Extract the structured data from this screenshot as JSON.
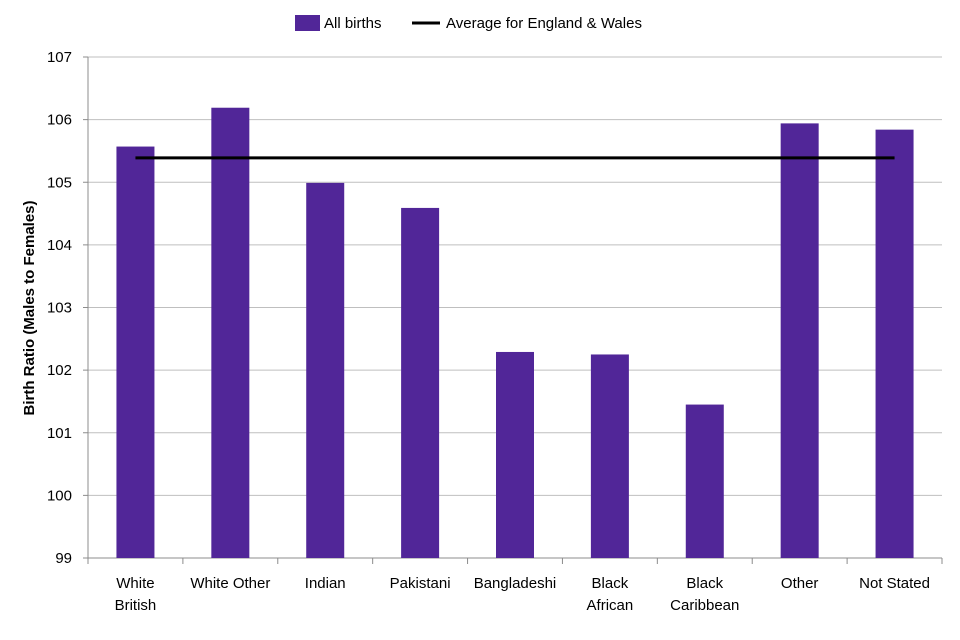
{
  "chart_data": {
    "type": "bar",
    "title": "",
    "xlabel": "",
    "ylabel": "Birth Ratio (Males to Females)",
    "ylim": [
      99,
      107
    ],
    "yticks": [
      "99",
      "100",
      "101",
      "102",
      "103",
      "104",
      "105",
      "106",
      "107"
    ],
    "grid": true,
    "legend_position": "top",
    "categories": [
      [
        "White",
        "British"
      ],
      [
        "White Other"
      ],
      [
        "Indian"
      ],
      [
        "Pakistani"
      ],
      [
        "Bangladeshi"
      ],
      [
        "Black",
        "African"
      ],
      [
        "Black",
        "Caribbean"
      ],
      [
        "Other"
      ],
      [
        "Not Stated"
      ]
    ],
    "series": [
      {
        "name": "All births",
        "type": "bar",
        "color": "#512698",
        "values": [
          105.57,
          106.19,
          104.99,
          104.59,
          102.29,
          102.25,
          101.45,
          105.94,
          105.84
        ]
      },
      {
        "name": "Average for England & Wales",
        "type": "line",
        "color": "#000000",
        "value": 105.39
      }
    ]
  }
}
